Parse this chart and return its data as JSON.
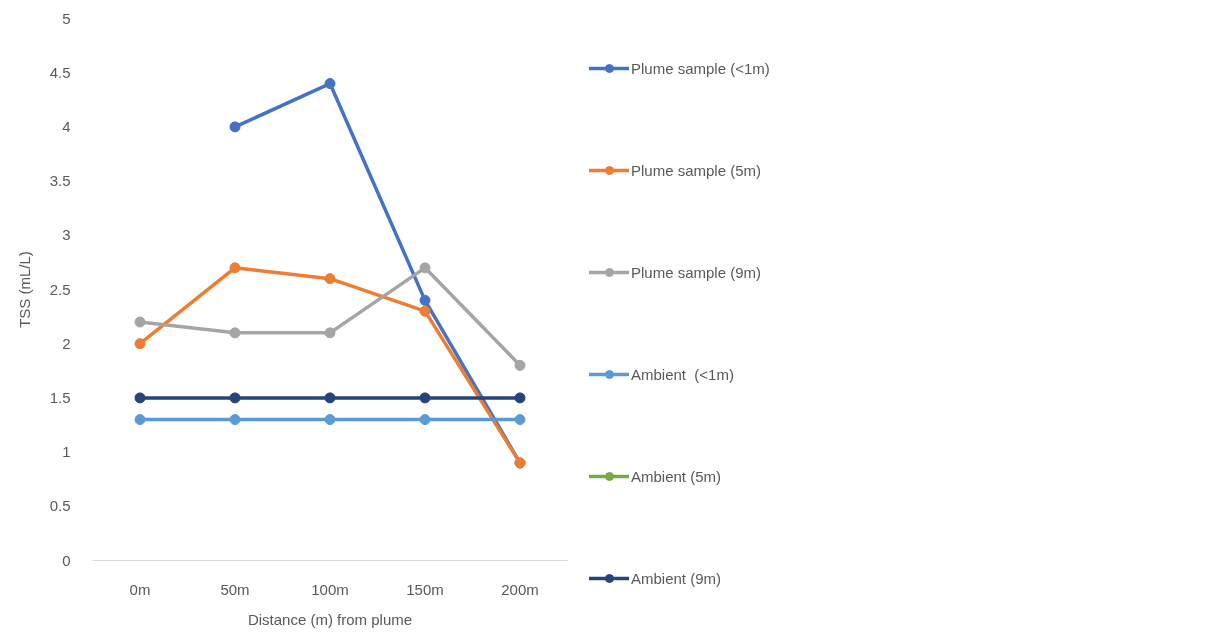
{
  "chart_data": {
    "type": "line",
    "xlabel": "Distance (m) from plume",
    "ylabel": "TSS (mL/L)",
    "categories": [
      "0m",
      "50m",
      "100m",
      "150m",
      "200m"
    ],
    "series": [
      {
        "name": "Plume sample (<1m)",
        "color": "#4472c4",
        "values": [
          null,
          4.0,
          4.4,
          2.4,
          0.9
        ]
      },
      {
        "name": "Plume sample (5m)",
        "color": "#ed7d31",
        "values": [
          2.0,
          2.7,
          2.6,
          2.3,
          0.9
        ]
      },
      {
        "name": "Plume sample (9m)",
        "color": "#a5a5a5",
        "values": [
          2.2,
          2.1,
          2.1,
          2.7,
          1.8
        ]
      },
      {
        "name": "Ambient  (<1m)",
        "color": "#5b9bd5",
        "values": [
          1.3,
          1.3,
          1.3,
          1.3,
          1.3
        ]
      },
      {
        "name": "Ambient (5m)",
        "color": "#70ad47",
        "values": [
          null,
          null,
          null,
          null,
          null
        ]
      },
      {
        "name": "Ambient (9m)",
        "color": "#264478",
        "values": [
          1.5,
          1.5,
          1.5,
          1.5,
          1.5
        ]
      }
    ],
    "ylim": [
      0,
      5
    ],
    "yticks": [
      0,
      0.5,
      1,
      1.5,
      2,
      2.5,
      3,
      3.5,
      4,
      4.5,
      5
    ],
    "grid": false,
    "legend": "right",
    "marker": "circle",
    "line_style": "solid"
  }
}
